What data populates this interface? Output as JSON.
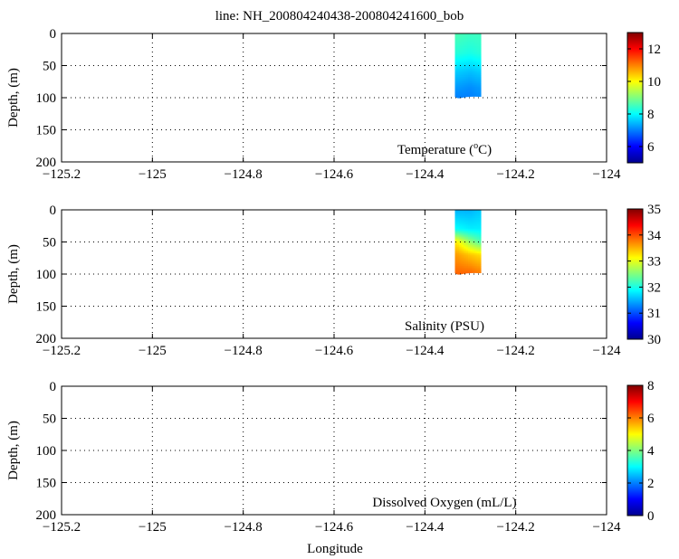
{
  "title": "line: NH_200804240438-200804241600_bob",
  "xlabel": "Longitude",
  "chart_data": [
    {
      "type": "heatmap",
      "name": "temperature",
      "annotation_text": "Temperature (",
      "annotation_sup": "o",
      "annotation_tail": "C)",
      "ylabel": "Depth, (m)",
      "xlim": [
        -125.2,
        -124.0
      ],
      "ylim": [
        0,
        200
      ],
      "y_inverted": true,
      "x_ticks": [
        -125.2,
        -125.0,
        -124.8,
        -124.6,
        -124.4,
        -124.2,
        -124.0
      ],
      "x_tick_labels": [
        "−125.2",
        "−125",
        "−124.8",
        "−124.6",
        "−124.4",
        "−124.2",
        "−124"
      ],
      "y_ticks": [
        0,
        50,
        100,
        150,
        200
      ],
      "y_tick_labels": [
        "0",
        "50",
        "100",
        "150",
        "200"
      ],
      "grid": true,
      "colorbar": {
        "min": 5,
        "max": 13,
        "ticks": [
          6,
          8,
          10,
          12
        ],
        "tick_labels": [
          "6",
          "8",
          "10",
          "12"
        ]
      },
      "data_region": {
        "lon": [
          -124.334,
          -124.276
        ],
        "depth": [
          0,
          100
        ]
      },
      "samples": [
        {
          "lon": -124.33,
          "depth": 0,
          "value": 8.6
        },
        {
          "lon": -124.3,
          "depth": 0,
          "value": 8.5
        },
        {
          "lon": -124.28,
          "depth": 0,
          "value": 8.5
        },
        {
          "lon": -124.33,
          "depth": 30,
          "value": 8.3
        },
        {
          "lon": -124.3,
          "depth": 30,
          "value": 8.2
        },
        {
          "lon": -124.28,
          "depth": 30,
          "value": 8.3
        },
        {
          "lon": -124.33,
          "depth": 60,
          "value": 7.6
        },
        {
          "lon": -124.3,
          "depth": 60,
          "value": 7.5
        },
        {
          "lon": -124.28,
          "depth": 60,
          "value": 7.6
        },
        {
          "lon": -124.33,
          "depth": 85,
          "value": 7.2
        },
        {
          "lon": -124.3,
          "depth": 85,
          "value": 7.1
        },
        {
          "lon": -124.28,
          "depth": 85,
          "value": 7.2
        },
        {
          "lon": -124.33,
          "depth": 100,
          "value": 7.0
        },
        {
          "lon": -124.3,
          "depth": 100,
          "value": 7.0
        },
        {
          "lon": -124.28,
          "depth": 100,
          "value": 7.1
        }
      ]
    },
    {
      "type": "heatmap",
      "name": "salinity",
      "annotation_text": "Salinity (PSU)",
      "annotation_sup": "",
      "annotation_tail": "",
      "ylabel": "Depth, (m)",
      "xlim": [
        -125.2,
        -124.0
      ],
      "ylim": [
        0,
        200
      ],
      "y_inverted": true,
      "x_ticks": [
        -125.2,
        -125.0,
        -124.8,
        -124.6,
        -124.4,
        -124.2,
        -124.0
      ],
      "x_tick_labels": [
        "−125.2",
        "−125",
        "−124.8",
        "−124.6",
        "−124.4",
        "−124.2",
        "−124"
      ],
      "y_ticks": [
        0,
        50,
        100,
        150,
        200
      ],
      "y_tick_labels": [
        "0",
        "50",
        "100",
        "150",
        "200"
      ],
      "grid": true,
      "colorbar": {
        "min": 30,
        "max": 35,
        "ticks": [
          30,
          31,
          32,
          33,
          34,
          35
        ],
        "tick_labels": [
          "30",
          "31",
          "32",
          "33",
          "34",
          "35"
        ]
      },
      "data_region": {
        "lon": [
          -124.334,
          -124.276
        ],
        "depth": [
          0,
          100
        ]
      },
      "samples": [
        {
          "lon": -124.33,
          "depth": 0,
          "value": 31.5
        },
        {
          "lon": -124.3,
          "depth": 0,
          "value": 31.5
        },
        {
          "lon": -124.28,
          "depth": 0,
          "value": 31.6
        },
        {
          "lon": -124.33,
          "depth": 30,
          "value": 31.9
        },
        {
          "lon": -124.3,
          "depth": 30,
          "value": 31.8
        },
        {
          "lon": -124.28,
          "depth": 30,
          "value": 31.8
        },
        {
          "lon": -124.33,
          "depth": 50,
          "value": 33.2
        },
        {
          "lon": -124.3,
          "depth": 50,
          "value": 32.6
        },
        {
          "lon": -124.28,
          "depth": 50,
          "value": 32.3
        },
        {
          "lon": -124.33,
          "depth": 70,
          "value": 33.6
        },
        {
          "lon": -124.3,
          "depth": 70,
          "value": 33.4
        },
        {
          "lon": -124.28,
          "depth": 70,
          "value": 33.3
        },
        {
          "lon": -124.33,
          "depth": 100,
          "value": 33.9
        },
        {
          "lon": -124.3,
          "depth": 100,
          "value": 33.9
        },
        {
          "lon": -124.28,
          "depth": 100,
          "value": 33.8
        }
      ]
    },
    {
      "type": "heatmap",
      "name": "oxygen",
      "annotation_text": "Dissolved Oxygen (mL/L)",
      "annotation_sup": "",
      "annotation_tail": "",
      "ylabel": "Depth, (m)",
      "xlim": [
        -125.2,
        -124.0
      ],
      "ylim": [
        0,
        200
      ],
      "y_inverted": true,
      "x_ticks": [
        -125.2,
        -125.0,
        -124.8,
        -124.6,
        -124.4,
        -124.2,
        -124.0
      ],
      "x_tick_labels": [
        "−125.2",
        "−125",
        "−124.8",
        "−124.6",
        "−124.4",
        "−124.2",
        "−124"
      ],
      "y_ticks": [
        0,
        50,
        100,
        150,
        200
      ],
      "y_tick_labels": [
        "0",
        "50",
        "100",
        "150",
        "200"
      ],
      "grid": true,
      "colorbar": {
        "min": 0,
        "max": 8,
        "ticks": [
          0,
          2,
          4,
          6,
          8
        ],
        "tick_labels": [
          "0",
          "2",
          "4",
          "6",
          "8"
        ]
      },
      "data_region": null,
      "samples": []
    }
  ]
}
